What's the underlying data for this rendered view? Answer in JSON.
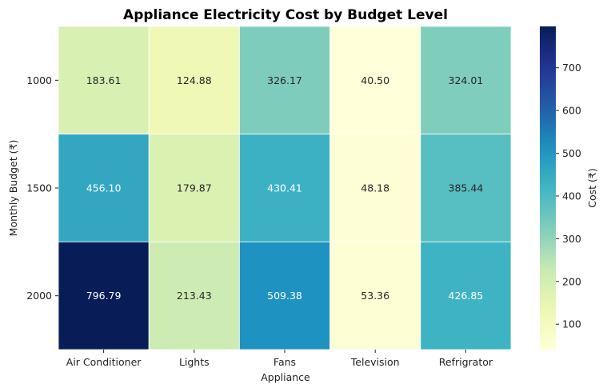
{
  "chart_data": {
    "type": "heatmap",
    "title": "Appliance Electricity Cost by Budget Level",
    "xlabel": "Appliance",
    "ylabel": "Monthly Budget (₹)",
    "x_categories": [
      "Air Conditioner",
      "Lights",
      "Fans",
      "Television",
      "Refrigrator"
    ],
    "y_categories": [
      "1000",
      "1500",
      "2000"
    ],
    "values": [
      [
        183.61,
        124.88,
        326.17,
        40.5,
        324.01
      ],
      [
        456.1,
        179.87,
        430.41,
        48.18,
        385.44
      ],
      [
        796.79,
        213.43,
        509.38,
        53.36,
        426.85
      ]
    ],
    "value_labels": [
      [
        "183.61",
        "124.88",
        "326.17",
        "40.50",
        "324.01"
      ],
      [
        "456.10",
        "179.87",
        "430.41",
        "48.18",
        "385.44"
      ],
      [
        "796.79",
        "213.43",
        "509.38",
        "53.36",
        "426.85"
      ]
    ],
    "colorbar": {
      "label": "Cost (₹)",
      "min": 40.5,
      "max": 796.79,
      "ticks": [
        100,
        200,
        300,
        400,
        500,
        600,
        700
      ],
      "colormap": "YlGnBu"
    },
    "grid_lines_color": "#ffffff"
  }
}
